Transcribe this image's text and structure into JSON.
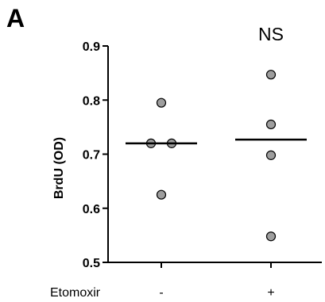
{
  "panel_label": "A",
  "annotation": "NS",
  "row_label": "Etomoxir",
  "chart_data": {
    "type": "scatter",
    "ylabel": "BrdU (OD)",
    "ylim": [
      0.5,
      0.9
    ],
    "yticks": [
      0.5,
      0.6,
      0.7,
      0.8,
      0.9
    ],
    "ytick_labels": [
      "0.5",
      "0.6",
      "0.7",
      "0.8",
      "0.9"
    ],
    "categories": [
      "-",
      "+"
    ],
    "groups": [
      {
        "category": "-",
        "values": [
          0.795,
          0.72,
          0.72,
          0.625
        ],
        "median": 0.72
      },
      {
        "category": "+",
        "values": [
          0.847,
          0.755,
          0.698,
          0.548
        ],
        "median": 0.727
      }
    ],
    "annotations": [
      "NS"
    ],
    "point_color": "#9e9e9e",
    "point_edge_color": "#000000",
    "line_color": "#000000",
    "grid": false,
    "legend": "none"
  }
}
